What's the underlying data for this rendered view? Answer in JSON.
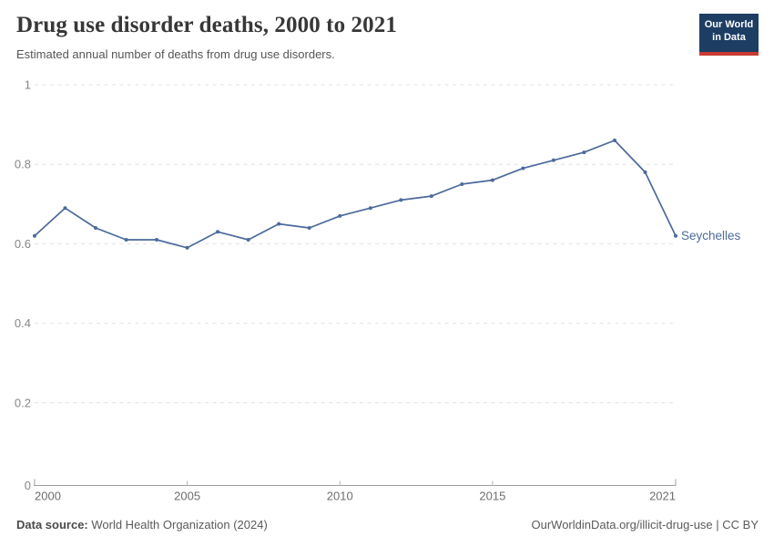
{
  "header": {
    "title": "Drug use disorder deaths, 2000 to 2021",
    "subtitle": "Estimated annual number of deaths from drug use disorders.",
    "logo_line1": "Our World",
    "logo_line2": "in Data"
  },
  "chart_data": {
    "type": "line",
    "title": "Drug use disorder deaths, 2000 to 2021",
    "xlabel": "",
    "ylabel": "",
    "xlim": [
      2000,
      2021
    ],
    "ylim": [
      0,
      1
    ],
    "grid": true,
    "legend_position": "end-of-line label",
    "x_ticks": [
      2000,
      2005,
      2010,
      2015,
      2021
    ],
    "y_ticks": [
      0,
      0.2,
      0.4,
      0.6,
      0.8,
      1
    ],
    "series": [
      {
        "name": "Seychelles",
        "color": "#4c6a9c",
        "x": [
          2000,
          2001,
          2002,
          2003,
          2004,
          2005,
          2006,
          2007,
          2008,
          2009,
          2010,
          2011,
          2012,
          2013,
          2014,
          2015,
          2016,
          2017,
          2018,
          2019,
          2020,
          2021
        ],
        "values": [
          0.62,
          0.69,
          0.64,
          0.61,
          0.61,
          0.59,
          0.63,
          0.61,
          0.65,
          0.64,
          0.67,
          0.69,
          0.71,
          0.72,
          0.75,
          0.76,
          0.79,
          0.81,
          0.83,
          0.86,
          0.78,
          0.62
        ]
      }
    ]
  },
  "footer": {
    "source_label": "Data source:",
    "source_text": " World Health Organization (2024)",
    "license_text": "OurWorldinData.org/illicit-drug-use | CC BY"
  },
  "colors": {
    "line": "#4c6a9c",
    "gridline": "#e2e2e2",
    "axis": "#9e9e9e",
    "tick": "#b5b5b5",
    "logo_bg": "#1d3d63",
    "logo_stripe": "#c93b32"
  }
}
